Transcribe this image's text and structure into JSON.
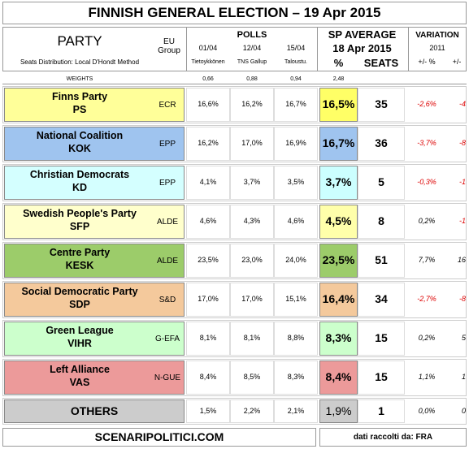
{
  "title": "FINNISH GENERAL ELECTION – 19 Apr 2015",
  "header": {
    "party": "PARTY",
    "eu_group": "EU Group",
    "seats_note": "Seats Distribution: Local D'Hondt Method",
    "polls": "POLLS",
    "poll_dates": [
      "01/04",
      "12/04",
      "15/04"
    ],
    "poll_sources": [
      "Tietoykkönen",
      "TNS Gallup",
      "Taloustu."
    ],
    "sp_average": "SP AVERAGE",
    "sp_date": "18 Apr 2015",
    "pct": "%",
    "seats": "SEATS",
    "variation": "VARIATION",
    "variation_year": "2011",
    "var_pct": "+/- %",
    "var_seats": "+/-"
  },
  "weights": {
    "label": "WEIGHTS",
    "values": [
      "0,66",
      "0,88",
      "0,94",
      "2,48"
    ]
  },
  "rows": [
    {
      "name": "Finns Party",
      "abbr": "PS",
      "group": "ECR",
      "polls": [
        "16,6%",
        "16,2%",
        "16,7%"
      ],
      "sp": "16,5%",
      "seats": "35",
      "var_pct": "-2,6%",
      "var_seats": "-4",
      "color": "#ffff99",
      "sp_color": "#ffff66"
    },
    {
      "name": "National Coalition",
      "abbr": "KOK",
      "group": "EPP",
      "polls": [
        "16,2%",
        "17,0%",
        "16,9%"
      ],
      "sp": "16,7%",
      "seats": "36",
      "var_pct": "-3,7%",
      "var_seats": "-8",
      "color": "#9fc4ef",
      "sp_color": "#9fc4ef"
    },
    {
      "name": "Christian Democrats",
      "abbr": "KD",
      "group": "EPP",
      "polls": [
        "4,1%",
        "3,7%",
        "3,5%"
      ],
      "sp": "3,7%",
      "seats": "5",
      "var_pct": "-0,3%",
      "var_seats": "-1",
      "color": "#d4ffff",
      "sp_color": "#ccffff"
    },
    {
      "name": "Swedish People's Party",
      "abbr": "SFP",
      "group": "ALDE",
      "polls": [
        "4,6%",
        "4,3%",
        "4,6%"
      ],
      "sp": "4,5%",
      "seats": "8",
      "var_pct": "0,2%",
      "var_seats": "-1",
      "color": "#ffffcc",
      "sp_color": "#ffffaa"
    },
    {
      "name": "Centre Party",
      "abbr": "KESK",
      "group": "ALDE",
      "polls": [
        "23,5%",
        "23,0%",
        "24,0%"
      ],
      "sp": "23,5%",
      "seats": "51",
      "var_pct": "7,7%",
      "var_seats": "16",
      "color": "#9ccc6a",
      "sp_color": "#9ccc6a"
    },
    {
      "name": "Social Democratic Party",
      "abbr": "SDP",
      "group": "S&D",
      "polls": [
        "17,0%",
        "17,0%",
        "15,1%"
      ],
      "sp": "16,4%",
      "seats": "34",
      "var_pct": "-2,7%",
      "var_seats": "-8",
      "color": "#f4c99c",
      "sp_color": "#f4c99c"
    },
    {
      "name": "Green League",
      "abbr": "VIHR",
      "group": "G-EFA",
      "polls": [
        "8,1%",
        "8,1%",
        "8,8%"
      ],
      "sp": "8,3%",
      "seats": "15",
      "var_pct": "0,2%",
      "var_seats": "5",
      "color": "#ccffcc",
      "sp_color": "#ccffcc"
    },
    {
      "name": "Left Alliance",
      "abbr": "VAS",
      "group": "N-GUE",
      "polls": [
        "8,4%",
        "8,5%",
        "8,3%"
      ],
      "sp": "8,4%",
      "seats": "15",
      "var_pct": "1,1%",
      "var_seats": "1",
      "color": "#ec9a9a",
      "sp_color": "#ec9a9a"
    }
  ],
  "others": {
    "name": "OTHERS",
    "polls": [
      "1,5%",
      "2,2%",
      "2,1%"
    ],
    "sp": "1,9%",
    "seats": "1",
    "var_pct": "0,0%",
    "var_seats": "0",
    "color": "#cccccc",
    "sp_color": "#cccccc"
  },
  "footer": {
    "source": "SCENARIPOLITICI.COM",
    "collected": "dati raccolti da: FRA"
  }
}
